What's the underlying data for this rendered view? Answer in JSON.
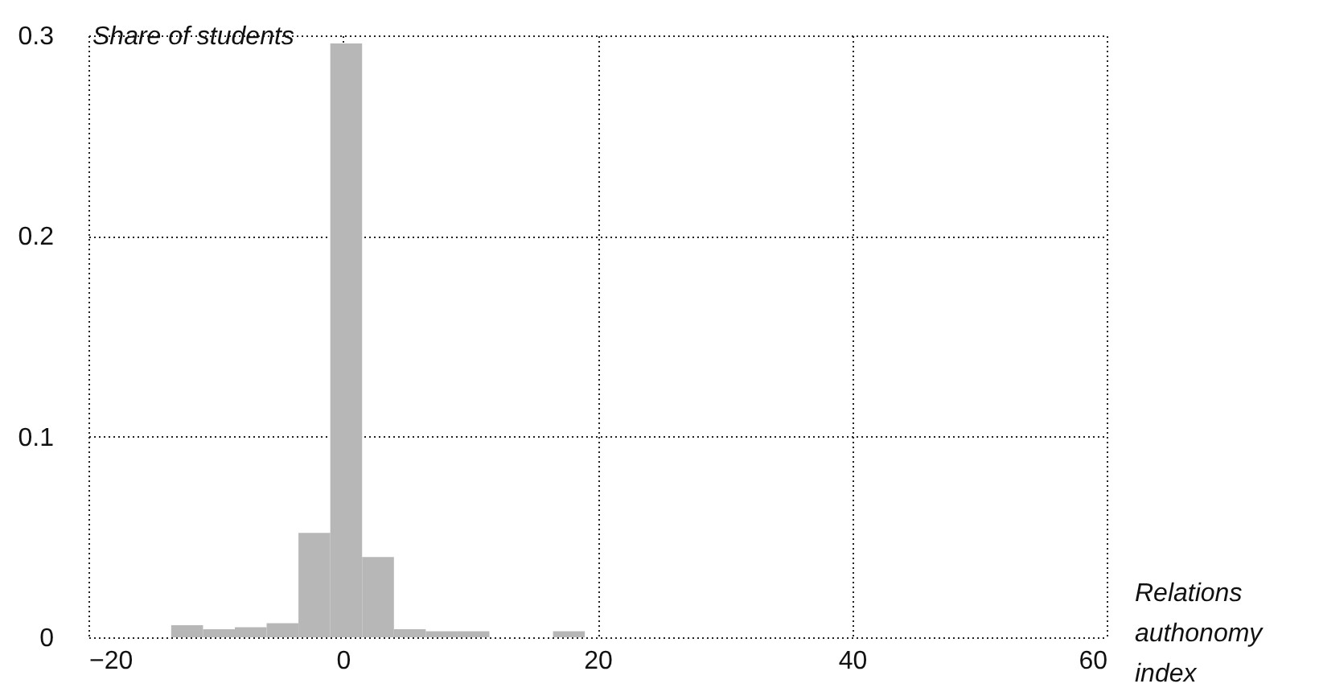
{
  "chart_data": {
    "type": "histogram",
    "xlabel": "Relations authonomy index",
    "ylabel": "Share of students",
    "bins": [
      -13.5,
      -11,
      -8.5,
      -6,
      -3.5,
      -1,
      1.5,
      4,
      6.5,
      9,
      11.5,
      14,
      16.5,
      19
    ],
    "values": [
      0.006,
      0.004,
      0.005,
      0.007,
      0.052,
      0.296,
      0.04,
      0.004,
      0.003,
      0.003,
      0,
      0,
      0.003
    ],
    "color": "#b7b7b7",
    "xlim": [
      -20,
      60
    ],
    "xticks": [
      -20,
      0,
      20,
      40,
      60
    ],
    "ylim": [
      0,
      0.3
    ],
    "yticks": [
      0,
      0.1,
      0.2,
      0.3
    ],
    "grid": true
  }
}
